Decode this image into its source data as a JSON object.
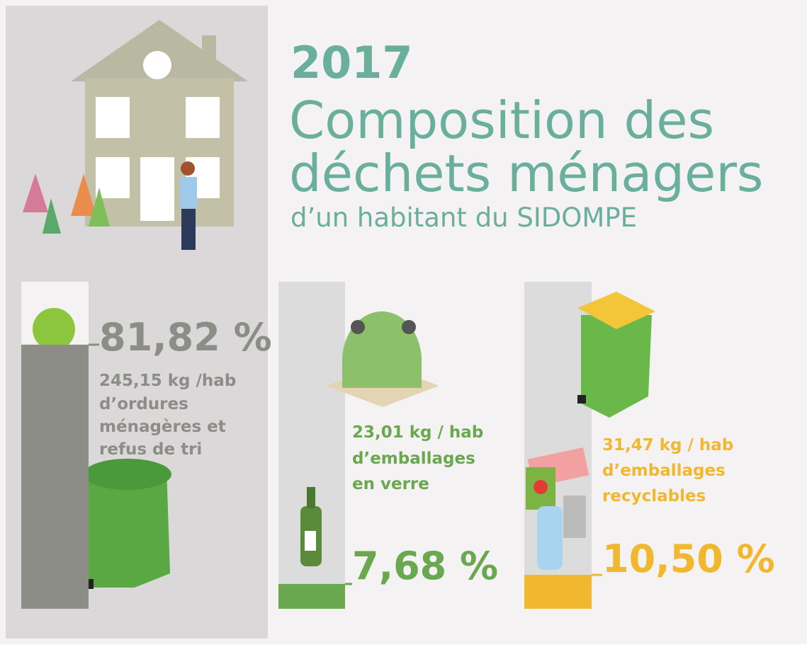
{
  "chart_data": {
    "type": "bar",
    "title": "2017",
    "subtitle_lines": [
      "Composition des",
      "déchets ménagers"
    ],
    "caption": "d’un habitant du SIDOMPE",
    "values": [
      81.82,
      7.68,
      10.5
    ],
    "value_labels": [
      "81,82 %",
      "7,68 %",
      "10,50 %"
    ],
    "amounts": [
      "245,15 kg /hab",
      "23,01 kg / hab",
      "31,47 kg / hab"
    ],
    "descriptions": [
      [
        "d’ordures",
        "ménagères et",
        "refus de tri"
      ],
      [
        "d’emballages",
        "en verre"
      ],
      [
        "d’emballages",
        "recyclables"
      ]
    ],
    "colors": [
      "#8d8d88",
      "#6aa84f",
      "#f0b72f"
    ]
  }
}
